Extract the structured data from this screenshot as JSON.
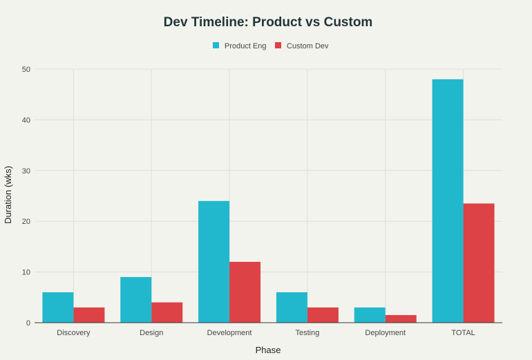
{
  "chart_data": {
    "type": "bar",
    "title": "Dev Timeline: Product vs Custom",
    "xlabel": "Phase",
    "ylabel": "Duration (wks)",
    "categories": [
      "Discovery",
      "Design",
      "Development",
      "Testing",
      "Deployment",
      "TOTAL"
    ],
    "series": [
      {
        "name": "Product Eng",
        "color": "#21b8cd",
        "values": [
          6,
          9,
          24,
          6,
          3,
          48
        ]
      },
      {
        "name": "Custom Dev",
        "color": "#dc4246",
        "values": [
          3,
          4,
          12,
          3,
          1.5,
          23.5
        ]
      }
    ],
    "ylim": [
      0,
      50
    ],
    "yticks": [
      0,
      10,
      20,
      30,
      40,
      50
    ],
    "grid": true,
    "legend": "top-center"
  }
}
